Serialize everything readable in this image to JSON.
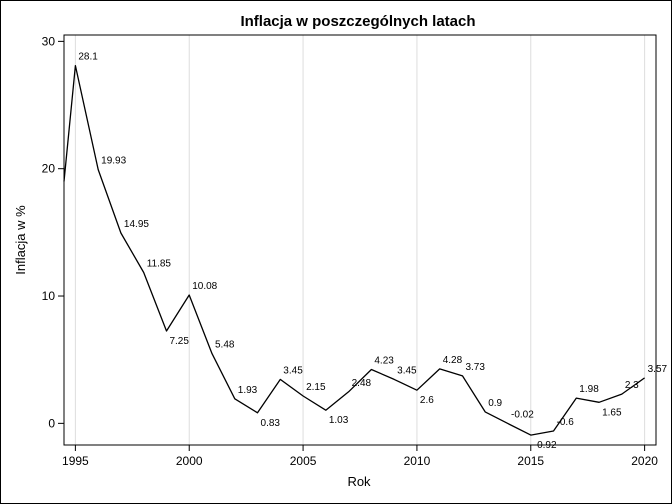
{
  "chart_data": {
    "type": "line",
    "title": "Inflacja w poszczególnych latach",
    "xlabel": "Rok",
    "ylabel": "Inflacja w %",
    "xlim": [
      1994.5,
      2020.5
    ],
    "ylim": [
      -1.7,
      30.5
    ],
    "x_ticks": [
      1995,
      2000,
      2005,
      2010,
      2015,
      2020
    ],
    "y_ticks": [
      0,
      10,
      20,
      30
    ],
    "grid": "vertical",
    "legend": "none",
    "line_color": "#000000",
    "grid_color": "#dddddd",
    "series": [
      {
        "x": [
          1994.5,
          1995,
          1996,
          1997,
          1998,
          1999,
          2000,
          2001,
          2002,
          2003,
          2004,
          2005,
          2006,
          2007,
          2008,
          2009,
          2010,
          2011,
          2012,
          2013,
          2014,
          2015,
          2016,
          2017,
          2018,
          2019,
          2020
        ],
        "values": [
          19.0,
          28.1,
          19.93,
          14.95,
          11.85,
          7.25,
          10.08,
          5.48,
          1.93,
          0.83,
          3.45,
          2.15,
          1.03,
          2.48,
          4.23,
          3.45,
          2.6,
          4.28,
          3.73,
          0.9,
          -0.02,
          -0.92,
          -0.6,
          1.98,
          1.65,
          2.3,
          3.57
        ]
      }
    ],
    "data_labels": [
      {
        "x": 1995,
        "y": 28.1,
        "text": "28.1"
      },
      {
        "x": 1996,
        "y": 19.93,
        "text": "19.93"
      },
      {
        "x": 1997,
        "y": 14.95,
        "text": "14.95"
      },
      {
        "x": 1998,
        "y": 11.85,
        "text": "11.85"
      },
      {
        "x": 1999,
        "y": 7.25,
        "text": "7.25"
      },
      {
        "x": 2000,
        "y": 10.08,
        "text": "10.08"
      },
      {
        "x": 2001,
        "y": 5.48,
        "text": "5.48"
      },
      {
        "x": 2002,
        "y": 1.93,
        "text": "1.93"
      },
      {
        "x": 2003,
        "y": 0.83,
        "text": "0.83"
      },
      {
        "x": 2004,
        "y": 3.45,
        "text": "3.45"
      },
      {
        "x": 2005,
        "y": 2.15,
        "text": "2.15"
      },
      {
        "x": 2006,
        "y": 1.03,
        "text": "1.03"
      },
      {
        "x": 2007,
        "y": 2.48,
        "text": "2.48"
      },
      {
        "x": 2008,
        "y": 4.23,
        "text": "4.23"
      },
      {
        "x": 2009,
        "y": 3.45,
        "text": "3.45"
      },
      {
        "x": 2010,
        "y": 2.6,
        "text": "2.6"
      },
      {
        "x": 2011,
        "y": 4.28,
        "text": "4.28"
      },
      {
        "x": 2012,
        "y": 3.73,
        "text": "3.73"
      },
      {
        "x": 2013,
        "y": 0.9,
        "text": "0.9"
      },
      {
        "x": 2014,
        "y": -0.02,
        "text": "-0.02"
      },
      {
        "x": 2015,
        "y": -0.92,
        "text": "-0.92"
      },
      {
        "x": 2016,
        "y": -0.6,
        "text": "-0.6"
      },
      {
        "x": 2017,
        "y": 1.98,
        "text": "1.98"
      },
      {
        "x": 2018,
        "y": 1.65,
        "text": "1.65"
      },
      {
        "x": 2019,
        "y": 2.3,
        "text": "2.3"
      },
      {
        "x": 2020,
        "y": 3.57,
        "text": "3.57"
      }
    ]
  }
}
